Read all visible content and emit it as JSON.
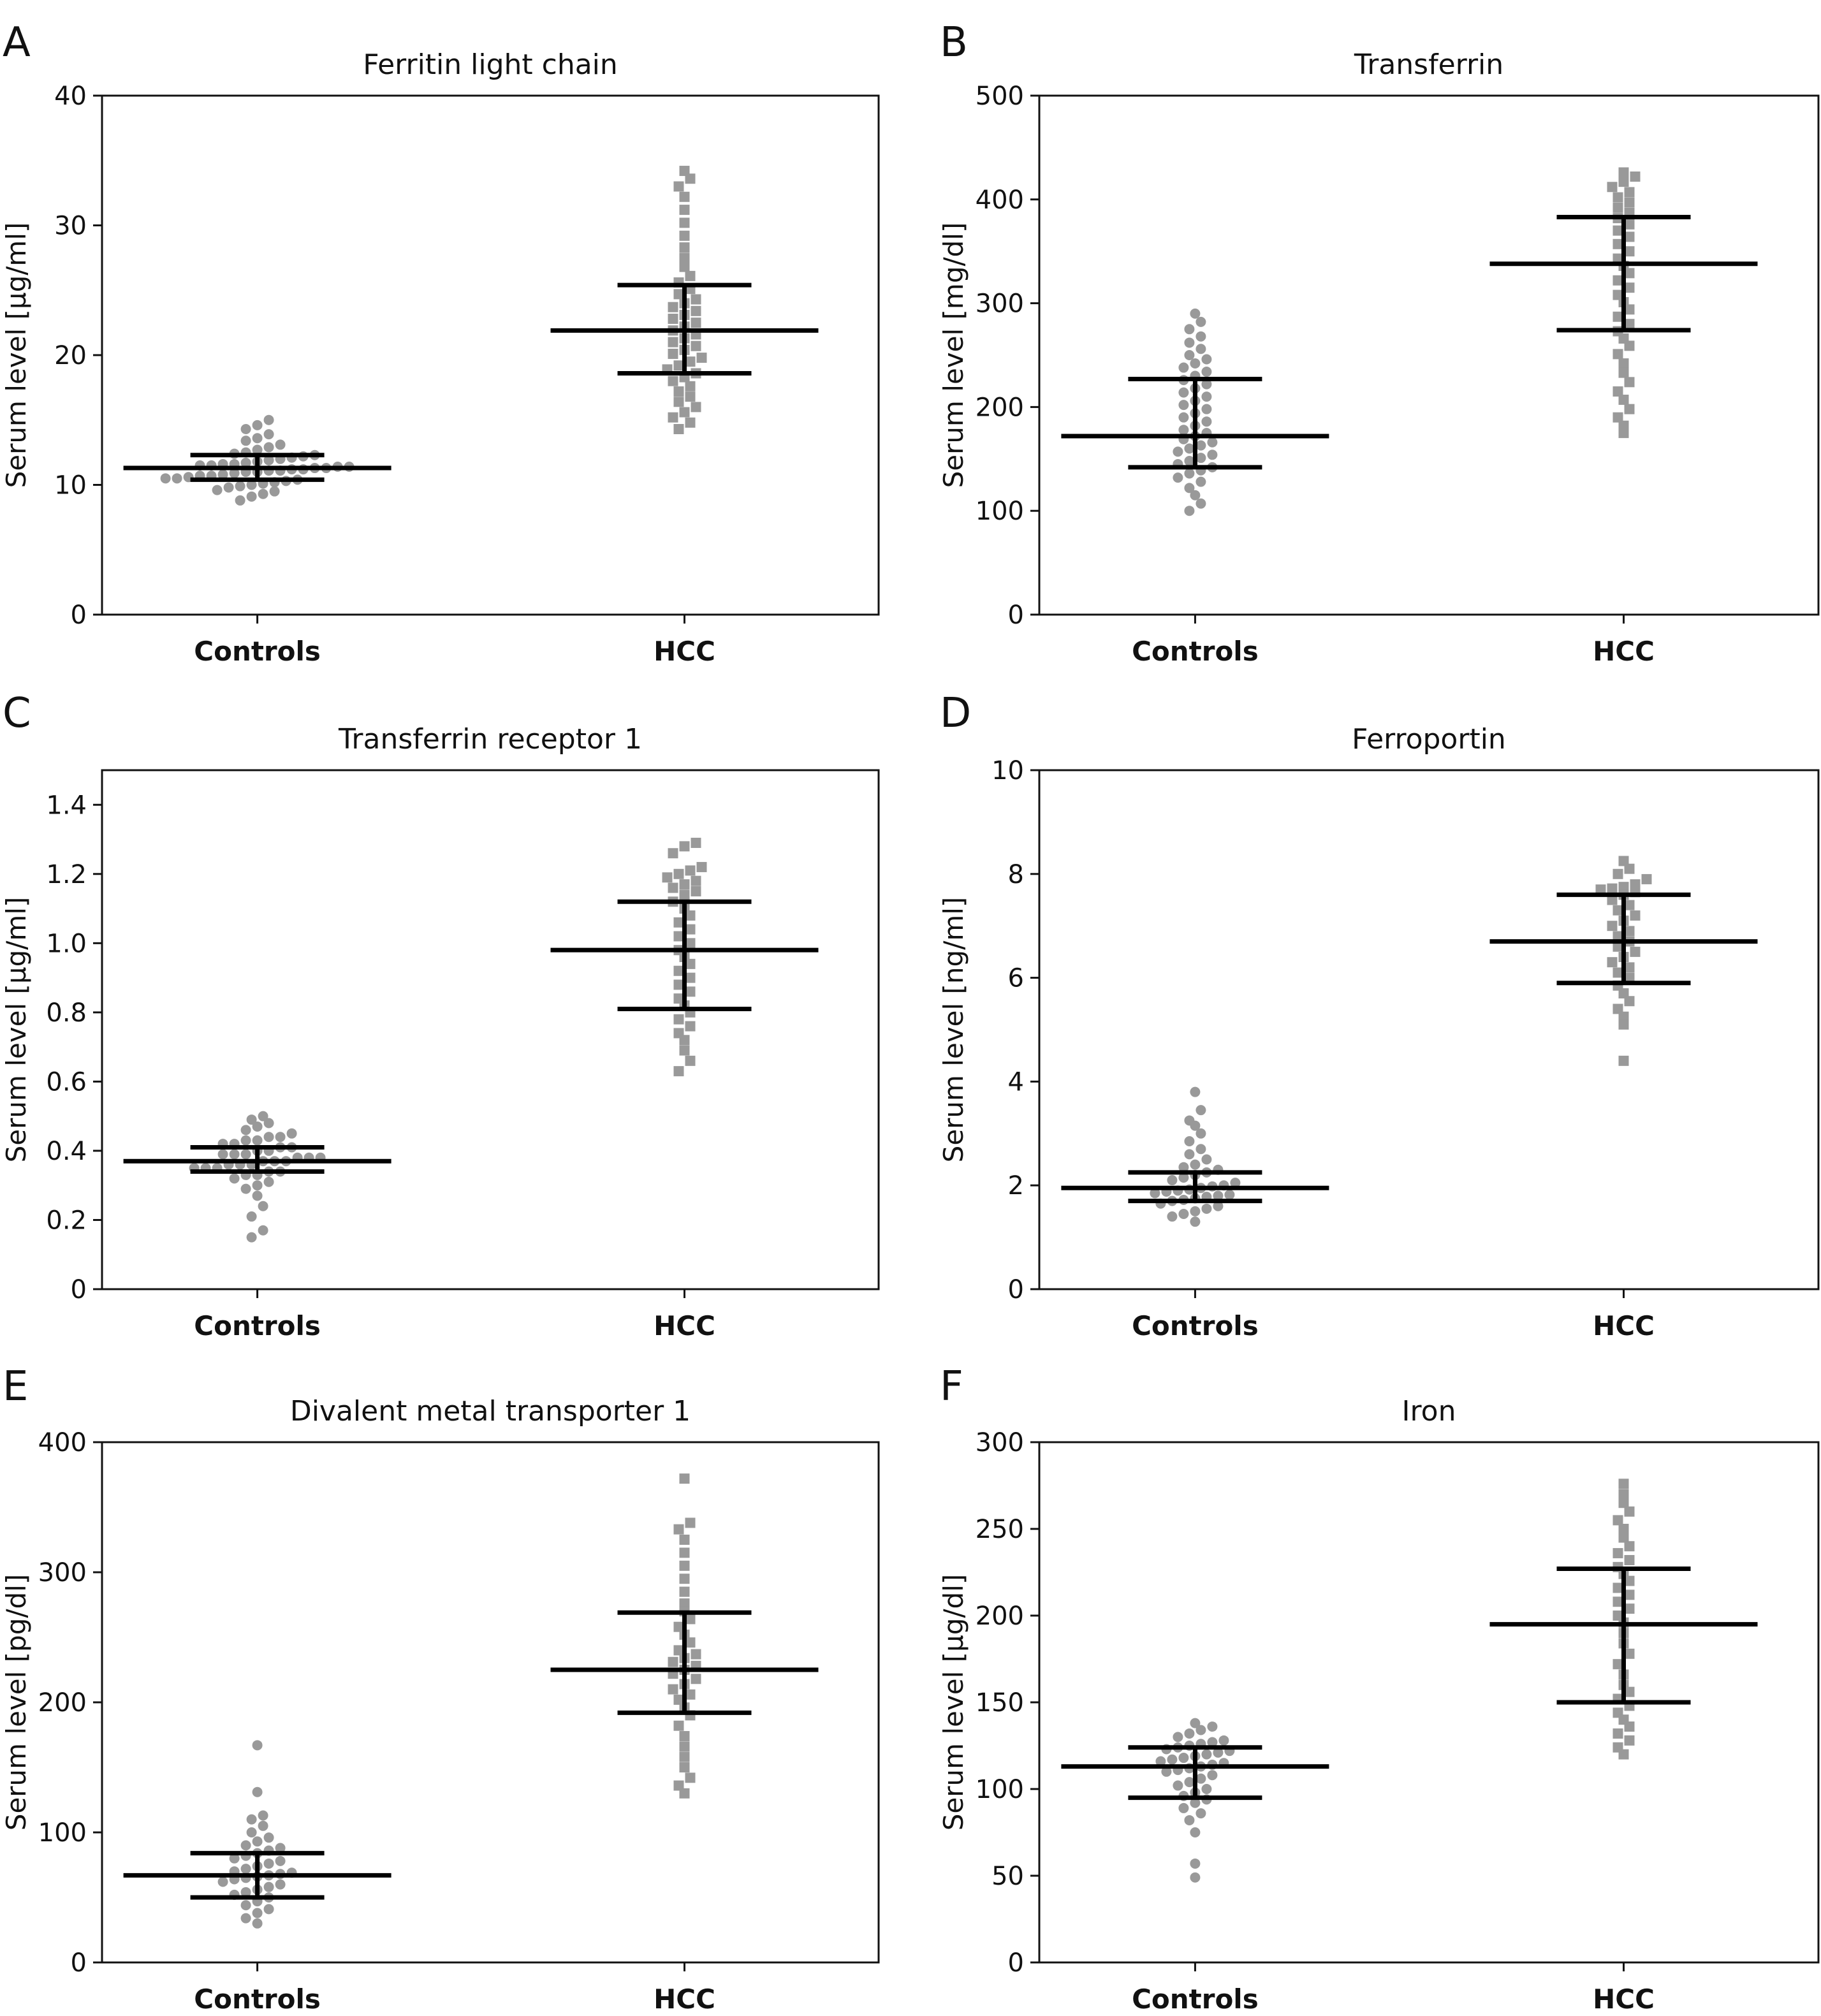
{
  "chart_data": [
    {
      "panel_letter": "A",
      "type": "scatter",
      "title": "Ferritin light chain",
      "ylabel": "Serum level [μg/ml]",
      "categories": [
        "Controls",
        "HCC"
      ],
      "ylim": [
        0,
        40
      ],
      "yticks": [
        0,
        10,
        20,
        30,
        40
      ],
      "yticklabels": [
        "0",
        "10",
        "20",
        "30",
        "40"
      ],
      "grid": false,
      "series": [
        {
          "category": "Controls",
          "marker": "circle",
          "color": "#999999",
          "values": [
            8.8,
            9.1,
            9.3,
            9.5,
            9.6,
            9.8,
            9.9,
            10.0,
            10.1,
            10.2,
            10.3,
            10.4,
            10.5,
            10.5,
            10.6,
            10.7,
            10.7,
            10.8,
            10.9,
            11.0,
            11.0,
            11.1,
            11.1,
            11.2,
            11.2,
            11.3,
            11.3,
            11.4,
            11.4,
            11.5,
            11.5,
            11.6,
            11.6,
            11.7,
            11.8,
            11.9,
            12.0,
            12.1,
            12.2,
            12.3,
            12.4,
            12.5,
            12.7,
            12.9,
            13.1,
            13.4,
            13.6,
            13.9,
            14.3,
            14.6,
            15.0
          ],
          "mean": 11.3,
          "err_low": 10.4,
          "err_high": 12.3
        },
        {
          "category": "HCC",
          "marker": "square",
          "color": "#999999",
          "values": [
            14.3,
            14.8,
            15.2,
            15.6,
            16.0,
            16.4,
            16.8,
            17.2,
            17.6,
            18.0,
            18.3,
            18.6,
            18.9,
            19.2,
            19.5,
            19.8,
            20.1,
            20.4,
            20.7,
            21.0,
            21.3,
            21.6,
            21.9,
            22.2,
            22.5,
            22.8,
            23.1,
            23.4,
            23.7,
            24.0,
            24.3,
            24.7,
            25.1,
            25.6,
            26.1,
            26.8,
            27.5,
            28.3,
            29.2,
            30.2,
            31.2,
            32.2,
            33.0,
            33.6,
            34.2
          ],
          "mean": 21.9,
          "err_low": 18.6,
          "err_high": 25.4
        }
      ]
    },
    {
      "panel_letter": "B",
      "type": "scatter",
      "title": "Transferrin",
      "ylabel": "Serum level [mg/dl]",
      "categories": [
        "Controls",
        "HCC"
      ],
      "ylim": [
        0,
        500
      ],
      "yticks": [
        0,
        100,
        200,
        300,
        400,
        500
      ],
      "yticklabels": [
        "0",
        "100",
        "200",
        "300",
        "400",
        "500"
      ],
      "grid": false,
      "series": [
        {
          "category": "Controls",
          "marker": "circle",
          "color": "#999999",
          "values": [
            100,
            107,
            115,
            122,
            128,
            132,
            136,
            139,
            142,
            145,
            148,
            151,
            154,
            157,
            160,
            163,
            166,
            169,
            172,
            175,
            178,
            182,
            186,
            190,
            194,
            198,
            202,
            206,
            210,
            214,
            218,
            222,
            226,
            230,
            234,
            238,
            242,
            246,
            250,
            256,
            262,
            268,
            275,
            282,
            290
          ],
          "mean": 172,
          "err_low": 142,
          "err_high": 227
        },
        {
          "category": "HCC",
          "marker": "square",
          "color": "#999999",
          "values": [
            175,
            182,
            190,
            198,
            207,
            215,
            224,
            233,
            242,
            251,
            259,
            266,
            273,
            280,
            287,
            294,
            301,
            308,
            315,
            322,
            329,
            336,
            343,
            350,
            357,
            364,
            370,
            376,
            382,
            387,
            392,
            397,
            402,
            407,
            412,
            417,
            422,
            426
          ],
          "mean": 338,
          "err_low": 274,
          "err_high": 383
        }
      ]
    },
    {
      "panel_letter": "C",
      "type": "scatter",
      "title": "Transferrin receptor 1",
      "ylabel": "Serum level [μg/ml]",
      "categories": [
        "Controls",
        "HCC"
      ],
      "ylim": [
        0,
        1.5
      ],
      "yticks": [
        0,
        0.2,
        0.4,
        0.6,
        0.8,
        1.0,
        1.2,
        1.4
      ],
      "yticklabels": [
        "0",
        "0.2",
        "0.4",
        "0.6",
        "0.8",
        "1.0",
        "1.2",
        "1.4"
      ],
      "grid": false,
      "series": [
        {
          "category": "Controls",
          "marker": "circle",
          "color": "#999999",
          "values": [
            0.15,
            0.17,
            0.21,
            0.24,
            0.27,
            0.29,
            0.3,
            0.31,
            0.32,
            0.33,
            0.33,
            0.34,
            0.34,
            0.35,
            0.35,
            0.35,
            0.36,
            0.36,
            0.36,
            0.37,
            0.37,
            0.37,
            0.38,
            0.38,
            0.38,
            0.39,
            0.39,
            0.39,
            0.4,
            0.4,
            0.41,
            0.41,
            0.42,
            0.42,
            0.43,
            0.43,
            0.44,
            0.44,
            0.45,
            0.46,
            0.47,
            0.48,
            0.49,
            0.5
          ],
          "mean": 0.37,
          "err_low": 0.34,
          "err_high": 0.41
        },
        {
          "category": "HCC",
          "marker": "square",
          "color": "#999999",
          "values": [
            0.63,
            0.66,
            0.69,
            0.72,
            0.74,
            0.76,
            0.78,
            0.8,
            0.82,
            0.84,
            0.86,
            0.88,
            0.9,
            0.92,
            0.94,
            0.96,
            0.98,
            1.0,
            1.02,
            1.04,
            1.06,
            1.08,
            1.1,
            1.12,
            1.14,
            1.15,
            1.16,
            1.17,
            1.18,
            1.19,
            1.2,
            1.21,
            1.22,
            1.26,
            1.28,
            1.29
          ],
          "mean": 0.98,
          "err_low": 0.81,
          "err_high": 1.12
        }
      ]
    },
    {
      "panel_letter": "D",
      "type": "scatter",
      "title": "Ferroportin",
      "ylabel": "Serum level [ng/ml]",
      "categories": [
        "Controls",
        "HCC"
      ],
      "ylim": [
        0,
        10
      ],
      "yticks": [
        0,
        2,
        4,
        6,
        8,
        10
      ],
      "yticklabels": [
        "0",
        "2",
        "4",
        "6",
        "8",
        "10"
      ],
      "grid": false,
      "series": [
        {
          "category": "Controls",
          "marker": "circle",
          "color": "#999999",
          "values": [
            1.3,
            1.4,
            1.45,
            1.5,
            1.55,
            1.6,
            1.65,
            1.7,
            1.72,
            1.75,
            1.78,
            1.8,
            1.82,
            1.85,
            1.88,
            1.9,
            1.92,
            1.95,
            1.98,
            2.0,
            2.05,
            2.1,
            2.15,
            2.2,
            2.25,
            2.3,
            2.35,
            2.4,
            2.5,
            2.6,
            2.7,
            2.85,
            3.0,
            3.15,
            3.25,
            3.45,
            3.8
          ],
          "mean": 1.95,
          "err_low": 1.7,
          "err_high": 2.25
        },
        {
          "category": "HCC",
          "marker": "square",
          "color": "#999999",
          "values": [
            4.4,
            5.1,
            5.25,
            5.4,
            5.55,
            5.7,
            5.85,
            6.0,
            6.1,
            6.2,
            6.3,
            6.4,
            6.5,
            6.6,
            6.7,
            6.8,
            6.9,
            7.0,
            7.1,
            7.2,
            7.3,
            7.4,
            7.5,
            7.6,
            7.65,
            7.7,
            7.72,
            7.75,
            7.8,
            7.9,
            8.0,
            8.1,
            8.25
          ],
          "mean": 6.7,
          "err_low": 5.9,
          "err_high": 7.6
        }
      ]
    },
    {
      "panel_letter": "E",
      "type": "scatter",
      "title": "Divalent metal transporter 1",
      "ylabel": "Serum level [pg/dl]",
      "categories": [
        "Controls",
        "HCC"
      ],
      "ylim": [
        0,
        400
      ],
      "yticks": [
        0,
        100,
        200,
        300,
        400
      ],
      "yticklabels": [
        "0",
        "100",
        "200",
        "300",
        "400"
      ],
      "grid": false,
      "series": [
        {
          "category": "Controls",
          "marker": "circle",
          "color": "#999999",
          "values": [
            30,
            34,
            38,
            41,
            44,
            47,
            50,
            52,
            54,
            56,
            58,
            60,
            62,
            64,
            65,
            66,
            67,
            68,
            69,
            70,
            72,
            74,
            76,
            78,
            80,
            82,
            84,
            86,
            88,
            90,
            93,
            96,
            100,
            105,
            110,
            113,
            131,
            167
          ],
          "mean": 67,
          "err_low": 50,
          "err_high": 84
        },
        {
          "category": "HCC",
          "marker": "square",
          "color": "#999999",
          "values": [
            130,
            136,
            142,
            150,
            158,
            166,
            174,
            182,
            190,
            196,
            202,
            206,
            210,
            214,
            218,
            222,
            225,
            228,
            231,
            234,
            237,
            240,
            246,
            252,
            258,
            264,
            270,
            276,
            285,
            295,
            305,
            315,
            325,
            333,
            338,
            372
          ],
          "mean": 225,
          "err_low": 192,
          "err_high": 269
        }
      ]
    },
    {
      "panel_letter": "F",
      "type": "scatter",
      "title": "Iron",
      "ylabel": "Serum level [μg/dl]",
      "categories": [
        "Controls",
        "HCC"
      ],
      "ylim": [
        0,
        300
      ],
      "yticks": [
        0,
        50,
        100,
        150,
        200,
        250,
        300
      ],
      "yticklabels": [
        "0",
        "50",
        "100",
        "150",
        "200",
        "250",
        "300"
      ],
      "grid": false,
      "series": [
        {
          "category": "Controls",
          "marker": "circle",
          "color": "#999999",
          "values": [
            49,
            57,
            75,
            82,
            86,
            89,
            92,
            94,
            96,
            98,
            100,
            102,
            104,
            106,
            108,
            110,
            111,
            112,
            113,
            114,
            115,
            116,
            117,
            118,
            119,
            120,
            121,
            122,
            123,
            124,
            125,
            126,
            127,
            128,
            130,
            132,
            134,
            136,
            138
          ],
          "mean": 113,
          "err_low": 95,
          "err_high": 124
        },
        {
          "category": "HCC",
          "marker": "square",
          "color": "#999999",
          "values": [
            120,
            124,
            128,
            132,
            136,
            140,
            144,
            148,
            152,
            156,
            160,
            166,
            172,
            178,
            184,
            190,
            196,
            200,
            204,
            208,
            212,
            216,
            220,
            224,
            228,
            232,
            236,
            240,
            245,
            250,
            255,
            260,
            265,
            270,
            276
          ],
          "mean": 195,
          "err_low": 150,
          "err_high": 227
        }
      ]
    }
  ]
}
